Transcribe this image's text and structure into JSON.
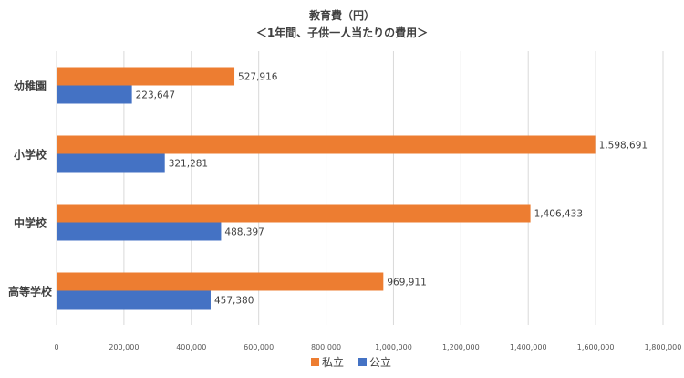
{
  "chart_data": {
    "type": "bar",
    "orientation": "horizontal",
    "title": "教育費（円）",
    "subtitle": "＜1年間、子供一人当たりの費用＞",
    "categories": [
      "幼稚園",
      "小学校",
      "中学校",
      "高等学校"
    ],
    "series": [
      {
        "name": "私立",
        "color": "#ED7D31",
        "values": [
          527916,
          1598691,
          1406433,
          969911
        ]
      },
      {
        "name": "公立",
        "color": "#4472C4",
        "values": [
          223647,
          321281,
          488397,
          457380
        ]
      }
    ],
    "data_labels": [
      [
        "527,916",
        "223,647"
      ],
      [
        "1,598,691",
        "321,281"
      ],
      [
        "1,406,433",
        "488,397"
      ],
      [
        "969,911",
        "457,380"
      ]
    ],
    "xlim": [
      0,
      1800000
    ],
    "x_ticks": [
      0,
      200000,
      400000,
      600000,
      800000,
      1000000,
      1200000,
      1400000,
      1600000,
      1800000
    ],
    "x_tick_labels": [
      "0",
      "200,000",
      "400,000",
      "600,000",
      "800,000",
      "1,000,000",
      "1,200,000",
      "1,400,000",
      "1,600,000",
      "1,800,000"
    ],
    "grid": true,
    "legend_position": "bottom"
  }
}
